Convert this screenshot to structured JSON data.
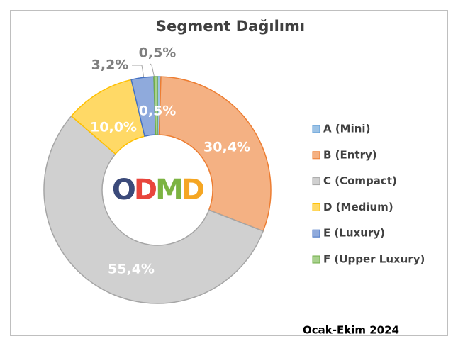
{
  "chart_data": {
    "type": "donut",
    "title": "Segment Dağılımı",
    "categories": [
      "A (Mini)",
      "B (Entry)",
      "C (Compact)",
      "D (Medium)",
      "E (Luxury)",
      "F (Upper Luxury)"
    ],
    "values": [
      0.5,
      30.4,
      55.4,
      10.0,
      3.2,
      0.5
    ],
    "value_labels": [
      "0,5%",
      "30,4%",
      "55,4%",
      "10,0%",
      "3,2%",
      "0,5%"
    ],
    "colors": [
      "#9dc3e6",
      "#f4b183",
      "#d0d0d0",
      "#ffd966",
      "#8faadc",
      "#a9d18e"
    ],
    "legend": "right",
    "logo": "ODMD",
    "note": "Ocak-Ekim 2024"
  }
}
